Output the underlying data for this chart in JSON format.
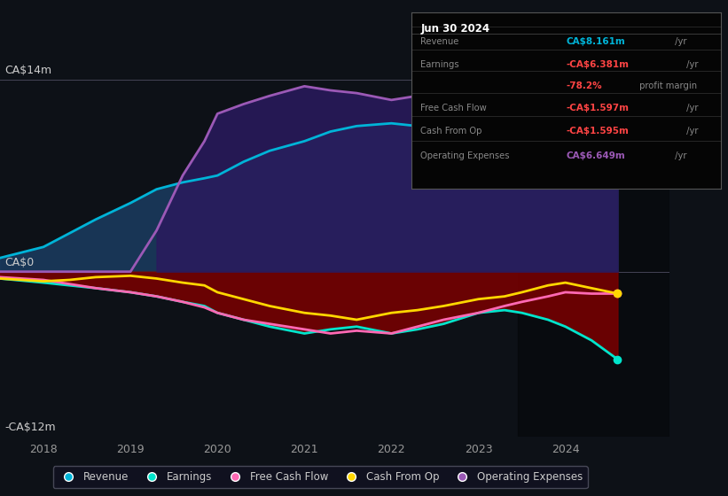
{
  "background_color": "#0d1117",
  "chart_bg": "#0d1117",
  "ylabel_top": "CA$14m",
  "ylabel_zero": "CA$0",
  "ylabel_bottom": "-CA$12m",
  "ylim": [
    -12,
    14
  ],
  "xlim": [
    2017.5,
    2025.2
  ],
  "xticks": [
    2018,
    2019,
    2020,
    2021,
    2022,
    2023,
    2024
  ],
  "colors": {
    "revenue": "#00b4d8",
    "earnings": "#00e5cc",
    "free_cash_flow": "#ff69b4",
    "cash_from_op": "#ffd700",
    "op_expenses": "#9b59b6"
  },
  "x": [
    2017.5,
    2018.0,
    2018.3,
    2018.6,
    2019.0,
    2019.3,
    2019.6,
    2019.85,
    2020.0,
    2020.3,
    2020.6,
    2021.0,
    2021.3,
    2021.6,
    2022.0,
    2022.3,
    2022.6,
    2023.0,
    2023.3,
    2023.5,
    2023.8,
    2024.0,
    2024.3,
    2024.6
  ],
  "revenue": [
    1.0,
    1.8,
    2.8,
    3.8,
    5.0,
    6.0,
    6.5,
    6.8,
    7.0,
    8.0,
    8.8,
    9.5,
    10.2,
    10.6,
    10.8,
    10.6,
    10.3,
    10.0,
    10.2,
    10.4,
    11.0,
    11.5,
    10.0,
    8.161
  ],
  "op_expenses": [
    0.0,
    0.0,
    0.0,
    0.0,
    0.0,
    3.0,
    7.0,
    9.5,
    11.5,
    12.2,
    12.8,
    13.5,
    13.2,
    13.0,
    12.5,
    12.8,
    13.0,
    11.5,
    11.0,
    10.8,
    10.2,
    9.8,
    8.5,
    6.649
  ],
  "earnings": [
    -0.5,
    -0.8,
    -1.0,
    -1.2,
    -1.5,
    -1.8,
    -2.2,
    -2.5,
    -3.0,
    -3.5,
    -4.0,
    -4.5,
    -4.2,
    -4.0,
    -4.5,
    -4.2,
    -3.8,
    -3.0,
    -2.8,
    -3.0,
    -3.5,
    -4.0,
    -5.0,
    -6.381
  ],
  "free_cash_flow": [
    -0.4,
    -0.6,
    -0.9,
    -1.2,
    -1.5,
    -1.8,
    -2.2,
    -2.6,
    -3.0,
    -3.5,
    -3.8,
    -4.2,
    -4.5,
    -4.3,
    -4.5,
    -4.0,
    -3.5,
    -3.0,
    -2.5,
    -2.2,
    -1.8,
    -1.5,
    -1.6,
    -1.597
  ],
  "cash_from_op": [
    -0.5,
    -0.7,
    -0.6,
    -0.4,
    -0.3,
    -0.5,
    -0.8,
    -1.0,
    -1.5,
    -2.0,
    -2.5,
    -3.0,
    -3.2,
    -3.5,
    -3.0,
    -2.8,
    -2.5,
    -2.0,
    -1.8,
    -1.5,
    -1.0,
    -0.8,
    -1.2,
    -1.595
  ],
  "infobox_title": "Jun 30 2024",
  "infobox_rows": [
    {
      "label": "Revenue",
      "value": "CA$8.161m",
      "unit": " /yr",
      "value_color": "#00b4d8"
    },
    {
      "label": "Earnings",
      "value": "-CA$6.381m",
      "unit": " /yr",
      "value_color": "#ff4444"
    },
    {
      "label": "",
      "value": "-78.2%",
      "unit": " profit margin",
      "value_color": "#ff4444"
    },
    {
      "label": "Free Cash Flow",
      "value": "-CA$1.597m",
      "unit": " /yr",
      "value_color": "#ff4444"
    },
    {
      "label": "Cash From Op",
      "value": "-CA$1.595m",
      "unit": " /yr",
      "value_color": "#ff4444"
    },
    {
      "label": "Operating Expenses",
      "value": "CA$6.649m",
      "unit": " /yr",
      "value_color": "#9b59b6"
    }
  ],
  "legend": [
    {
      "label": "Revenue",
      "color": "#00b4d8"
    },
    {
      "label": "Earnings",
      "color": "#00e5cc"
    },
    {
      "label": "Free Cash Flow",
      "color": "#ff69b4"
    },
    {
      "label": "Cash From Op",
      "color": "#ffd700"
    },
    {
      "label": "Operating Expenses",
      "color": "#9b59b6"
    }
  ]
}
